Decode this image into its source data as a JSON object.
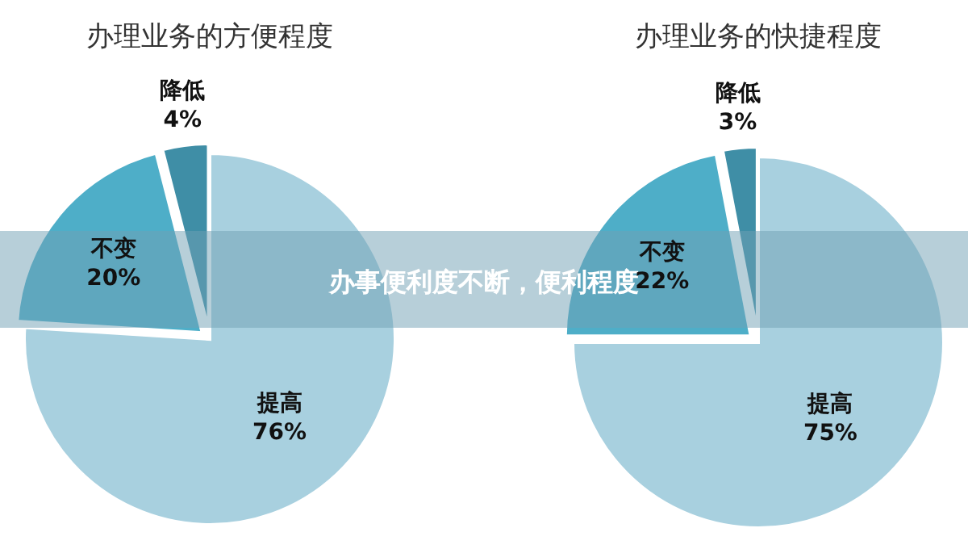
{
  "chart_data": [
    {
      "type": "pie",
      "title": "办理业务的方便程度",
      "categories": [
        "提高",
        "不变",
        "降低"
      ],
      "values": [
        76,
        20,
        4
      ],
      "value_labels": [
        "76%",
        "20%",
        "4%"
      ],
      "colors": [
        "#a8d0df",
        "#4eaec8",
        "#3f8ea6"
      ]
    },
    {
      "type": "pie",
      "title": "办理业务的快捷程度",
      "categories": [
        "提高",
        "不变",
        "降低"
      ],
      "values": [
        75,
        22,
        3
      ],
      "value_labels": [
        "75%",
        "22%",
        "3%"
      ],
      "colors": [
        "#a8d0df",
        "#4eaec8",
        "#3f8ea6"
      ]
    },
    {
      "type": "other",
      "title": "办事便利度不断，便利程度"
    }
  ]
}
